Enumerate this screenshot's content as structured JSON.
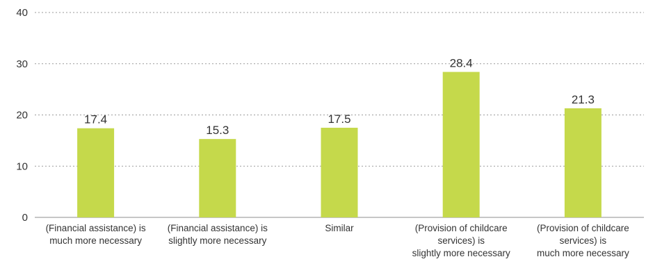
{
  "chart_data": {
    "type": "bar",
    "categories": [
      [
        "(Financial assistance) is",
        "much more necessary"
      ],
      [
        "(Financial assistance) is",
        "slightly more necessary"
      ],
      [
        "Similar"
      ],
      [
        "(Provision of childcare",
        "services) is",
        "slightly more necessary"
      ],
      [
        "(Provision of childcare",
        "services) is",
        "much more necessary"
      ]
    ],
    "values": [
      17.4,
      15.3,
      17.5,
      28.4,
      21.3
    ],
    "value_labels": [
      "17.4",
      "15.3",
      "17.5",
      "28.4",
      "21.3"
    ],
    "ylim": [
      0,
      40
    ],
    "yticks": [
      0,
      10,
      20,
      30,
      40
    ],
    "ytick_labels": [
      "0",
      "10",
      "20",
      "30",
      "40"
    ],
    "grid": true,
    "grid_style": "dotted",
    "bar_color": "#c5d94b",
    "title": "",
    "xlabel": "",
    "ylabel": ""
  }
}
